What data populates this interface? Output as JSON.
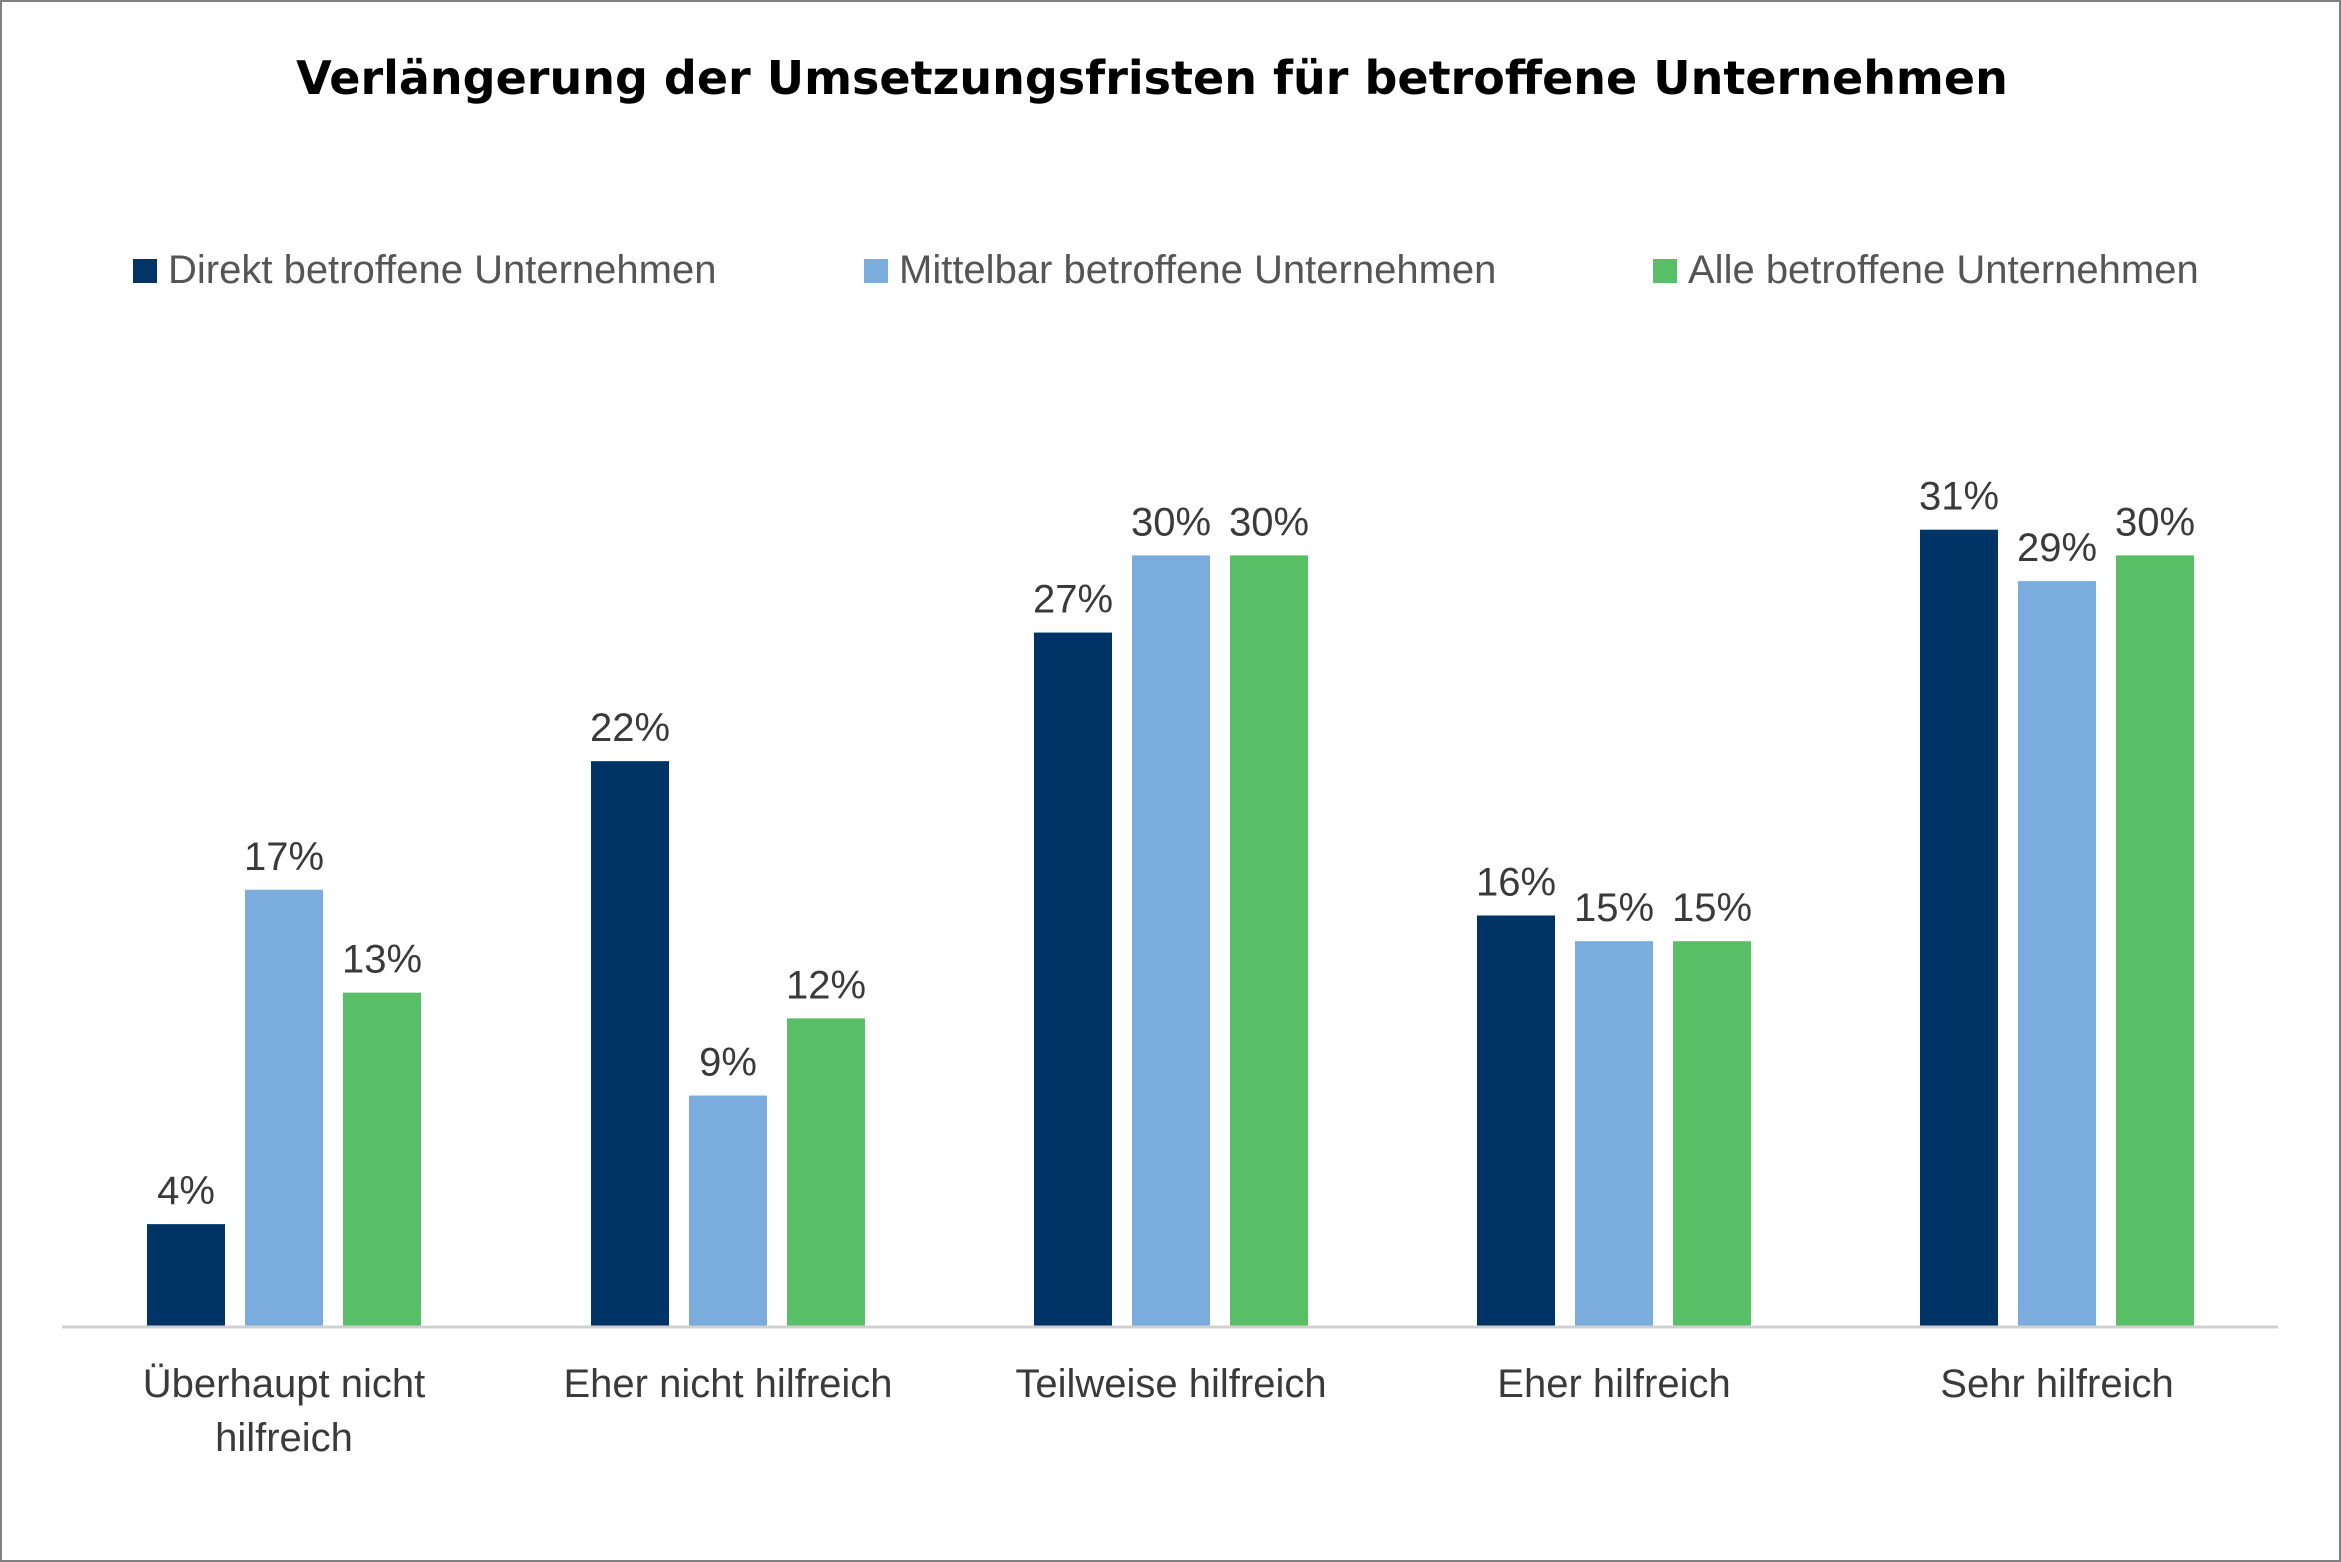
{
  "chart_data": {
    "type": "bar",
    "title": "Verlängerung der Umsetzungsfristen für betroffene Unternehmen",
    "categories": [
      [
        "Überhaupt nicht",
        "hilfreich"
      ],
      [
        "Eher nicht hilfreich"
      ],
      [
        "Teilweise hilfreich"
      ],
      [
        "Eher hilfreich"
      ],
      [
        "Sehr hilfreich"
      ]
    ],
    "series": [
      {
        "name": "Direkt betroffene Unternehmen",
        "color": "#003366",
        "values": [
          4,
          22,
          27,
          16,
          31
        ],
        "labels": [
          "4%",
          "22%",
          "27%",
          "16%",
          "31%"
        ]
      },
      {
        "name": "Mittelbar betroffene Unternehmen",
        "color": "#7aadde",
        "values": [
          17,
          9,
          30,
          15,
          29
        ],
        "labels": [
          "17%",
          "9%",
          "30%",
          "15%",
          "29%"
        ]
      },
      {
        "name": "Alle betroffene Unternehmen",
        "color": "#58bf66",
        "values": [
          13,
          12,
          30,
          15,
          30
        ],
        "labels": [
          "13%",
          "12%",
          "30%",
          "15%",
          "30%"
        ]
      }
    ],
    "ylim": [
      0,
      31
    ],
    "xlabel": "",
    "ylabel": "",
    "grid": false,
    "legend": "top"
  }
}
